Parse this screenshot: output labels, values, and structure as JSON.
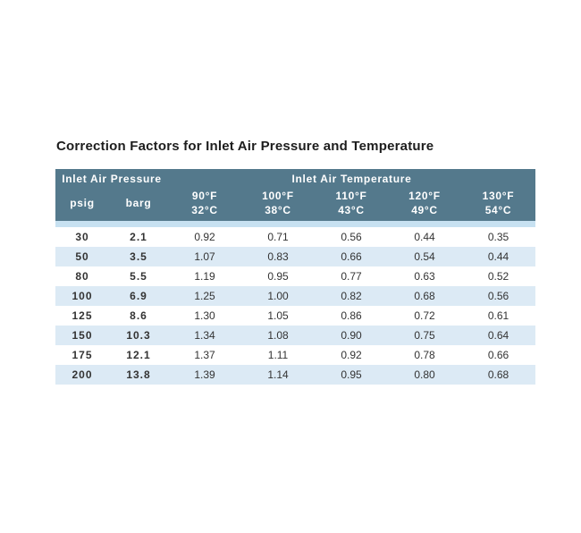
{
  "title": "Correction Factors for Inlet Air Pressure and Temperature",
  "table": {
    "group_headers": [
      {
        "label": "Inlet Air Pressure",
        "colspan": 2
      },
      {
        "label": "Inlet Air Temperature",
        "colspan": 5
      }
    ],
    "columns": [
      {
        "id": "psig",
        "lines": [
          "psig"
        ]
      },
      {
        "id": "barg",
        "lines": [
          "barg"
        ]
      },
      {
        "id": "temp-90f",
        "lines": [
          "90°F",
          "32°C"
        ]
      },
      {
        "id": "temp-100f",
        "lines": [
          "100°F",
          "38°C"
        ]
      },
      {
        "id": "temp-110f",
        "lines": [
          "110°F",
          "43°C"
        ]
      },
      {
        "id": "temp-120f",
        "lines": [
          "120°F",
          "49°C"
        ]
      },
      {
        "id": "temp-130f",
        "lines": [
          "130°F",
          "54°C"
        ]
      }
    ],
    "rows": [
      {
        "psig": "30",
        "barg": "2.1",
        "factors": [
          "0.92",
          "0.71",
          "0.56",
          "0.44",
          "0.35"
        ]
      },
      {
        "psig": "50",
        "barg": "3.5",
        "factors": [
          "1.07",
          "0.83",
          "0.66",
          "0.54",
          "0.44"
        ]
      },
      {
        "psig": "80",
        "barg": "5.5",
        "factors": [
          "1.19",
          "0.95",
          "0.77",
          "0.63",
          "0.52"
        ]
      },
      {
        "psig": "100",
        "barg": "6.9",
        "factors": [
          "1.25",
          "1.00",
          "0.82",
          "0.68",
          "0.56"
        ]
      },
      {
        "psig": "125",
        "barg": "8.6",
        "factors": [
          "1.30",
          "1.05",
          "0.86",
          "0.72",
          "0.61"
        ]
      },
      {
        "psig": "150",
        "barg": "10.3",
        "factors": [
          "1.34",
          "1.08",
          "0.90",
          "0.75",
          "0.64"
        ]
      },
      {
        "psig": "175",
        "barg": "12.1",
        "factors": [
          "1.37",
          "1.11",
          "0.92",
          "0.78",
          "0.66"
        ]
      },
      {
        "psig": "200",
        "barg": "13.8",
        "factors": [
          "1.39",
          "1.14",
          "0.95",
          "0.80",
          "0.68"
        ]
      }
    ],
    "colors": {
      "header_bg": "#54798c",
      "header_text": "#ffffff",
      "band_bg": "#c7e1f1",
      "stripe_bg": "#dceaf5",
      "row_bg": "#ffffff",
      "body_text": "#333333",
      "title_text": "#1d1d1d"
    }
  }
}
